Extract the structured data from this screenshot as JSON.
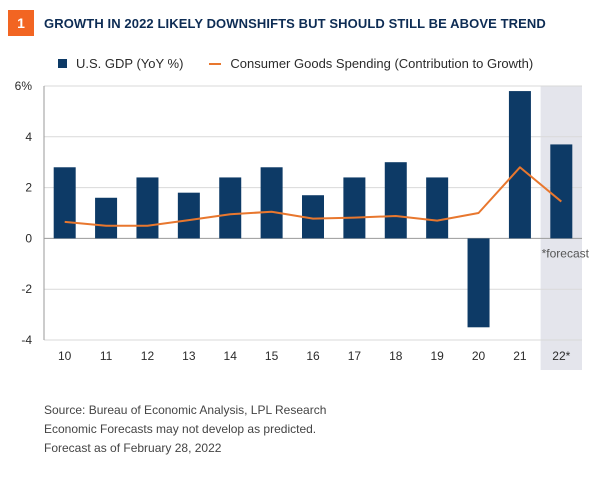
{
  "header": {
    "badge": "1",
    "title": "GROWTH IN 2022 LIKELY DOWNSHIFTS BUT SHOULD STILL BE ABOVE TREND"
  },
  "colors": {
    "bar": "#0d3a66",
    "line": "#e8772e",
    "forecast_shade": "#e4e5ec",
    "grid": "#d9d9d9",
    "axis": "#9a9a9a"
  },
  "chart_data": {
    "type": "bar",
    "categories": [
      "10",
      "11",
      "12",
      "13",
      "14",
      "15",
      "16",
      "17",
      "18",
      "19",
      "20",
      "21",
      "22*"
    ],
    "series": [
      {
        "name": "U.S. GDP (YoY %)",
        "type": "bar",
        "values": [
          2.8,
          1.6,
          2.4,
          1.8,
          2.4,
          2.8,
          1.7,
          2.4,
          3.0,
          2.4,
          -3.5,
          5.8,
          3.7
        ]
      },
      {
        "name": "Consumer Goods Spending (Contribution to Growth)",
        "type": "line",
        "values": [
          0.65,
          0.5,
          0.5,
          0.72,
          0.95,
          1.05,
          0.78,
          0.82,
          0.88,
          0.7,
          1.0,
          2.8,
          1.45
        ]
      }
    ],
    "ylim": [
      -4,
      6
    ],
    "yticks": [
      "6%",
      "4",
      "2",
      "0",
      "-2",
      "-4"
    ],
    "yticks_values": [
      6,
      4,
      2,
      0,
      -2,
      -4
    ],
    "grid": true,
    "legend": "top-left",
    "forecast_from_category": "22*",
    "annotation": "*forecast"
  },
  "footer": {
    "source": "Source: Bureau of Economic Analysis, LPL Research",
    "disclaimer": "Economic Forecasts may not develop as predicted.",
    "as_of": "Forecast as of February 28, 2022"
  }
}
